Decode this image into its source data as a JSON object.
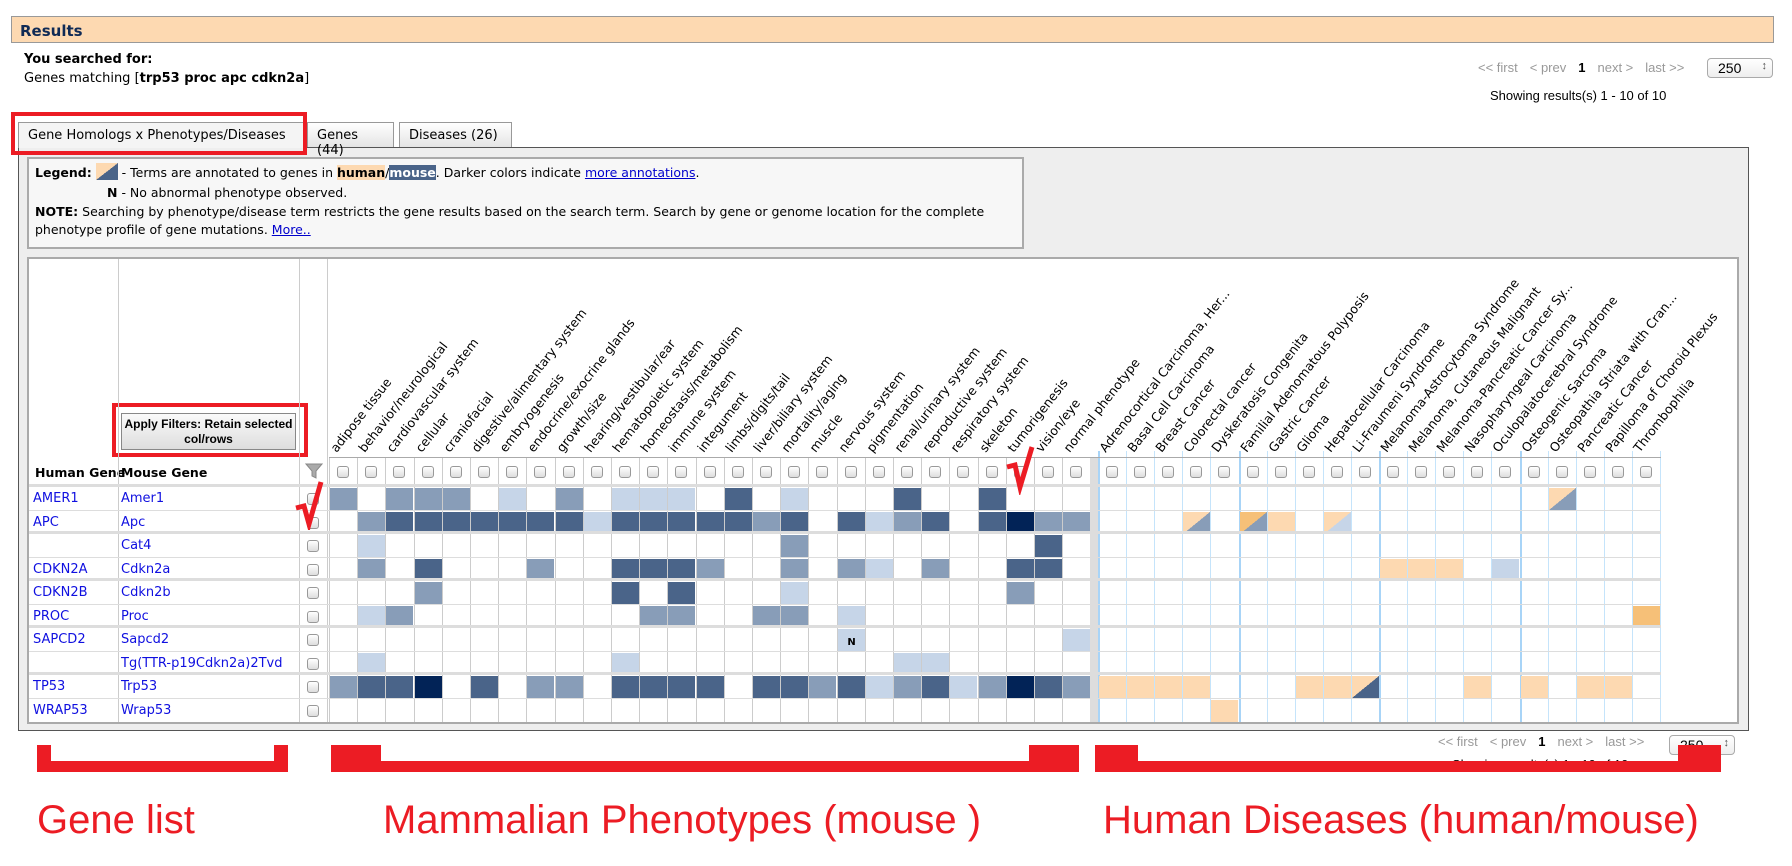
{
  "header": {
    "title": "Results",
    "searched_label": "You searched for:",
    "query_prefix": "Genes matching [",
    "query": "trp53 proc apc cdkn2a",
    "query_suffix": "]"
  },
  "pagination": {
    "first": "<< first",
    "prev": "< prev",
    "page": "1",
    "next": "next >",
    "last": "last >>",
    "page_size": "250",
    "showing": "Showing results(s) 1 - 10 of 10"
  },
  "tabs": [
    {
      "label": "Gene Homologs x Phenotypes/Diseases",
      "active": true
    },
    {
      "label": "Genes (44)"
    },
    {
      "label": "Diseases (26)"
    }
  ],
  "legend": {
    "label": "Legend:",
    "text1": " - Terms are annotated to genes in ",
    "human": "human",
    "slash": "/",
    "mouse": "mouse",
    "text2": ". Darker colors indicate ",
    "link": "more annotations",
    "text3": ".",
    "n_label": "N",
    "n_text": " - No abnormal phenotype observed.",
    "note_label": "NOTE:",
    "note_text": " Searching by phenotype/disease term restricts the gene results based on the search term. Search by gene or genome location for the complete phenotype profile of gene mutations. ",
    "note_link": "More.."
  },
  "grid": {
    "apply_button": "Apply Filters: Retain selected col/rows",
    "human_gene_header": "Human Gene",
    "mouse_gene_header": "Mouse Gene",
    "colors": {
      "mouse": [
        "#ffffff",
        "#c6d5e8",
        "#889db8",
        "#4a6489",
        "#022357"
      ],
      "human": [
        "#ffffff",
        "#fdd9b1",
        "#f6c078"
      ]
    },
    "phenotypes": [
      "adipose tissue",
      "behavior/neurological",
      "cardiovascular system",
      "cellular",
      "craniofacial",
      "digestive/alimentary system",
      "embryogenesis",
      "endocrine/exocrine glands",
      "growth/size",
      "hearing/vestibular/ear",
      "hematopoietic system",
      "homeostasis/metabolism",
      "immune system",
      "integument",
      "limbs/digits/tail",
      "liver/biliary system",
      "mortality/aging",
      "muscle",
      "nervous system",
      "pigmentation",
      "renal/urinary system",
      "reproductive system",
      "respiratory system",
      "skeleton",
      "tumorigenesis",
      "vision/eye",
      "normal phenotype"
    ],
    "diseases": [
      "Adrenocortical Carcinoma, Her...",
      "Basal Cell Carcinoma",
      "Breast Cancer",
      "Colorectal cancer",
      "Dyskeratosis Congenita",
      "Familial Adenomatous Polyposis",
      "Gastric Cancer",
      "Glioma",
      "Hepatocellular Carcinoma",
      "Li-Fraumeni Syndrome",
      "Melanoma-Astrocytoma Syndrome",
      "Melanoma, Cutaneous Malignant",
      "Melanoma-Pancreatic Cancer Sy...",
      "Nasopharyngeal Carcinoma",
      "Oculopalatocerebral Syndrome",
      "Osteogenic Sarcoma",
      "Osteopathia Striata with Cran...",
      "Pancreatic Cancer",
      "Papilloma of Choroid Plexus",
      "Thrombophilia"
    ],
    "rows": [
      {
        "human": "AMER1",
        "mouse": "Amer1",
        "pheno": [
          2,
          0,
          2,
          2,
          2,
          0,
          1,
          0,
          2,
          0,
          1,
          1,
          1,
          0,
          3,
          0,
          1,
          0,
          0,
          0,
          3,
          0,
          0,
          3,
          0,
          0,
          0
        ],
        "disease": [
          "",
          "",
          "",
          "",
          "",
          "",
          "",
          "",
          "",
          "",
          "",
          "",
          "",
          "",
          "",
          "",
          "h1/m2",
          "",
          "",
          ""
        ]
      },
      {
        "human": "APC",
        "mouse": "Apc",
        "pheno": [
          0,
          2,
          3,
          3,
          3,
          3,
          3,
          3,
          3,
          1,
          3,
          3,
          3,
          3,
          3,
          2,
          3,
          0,
          3,
          1,
          2,
          3,
          0,
          3,
          4,
          2,
          2
        ],
        "disease": [
          "",
          "",
          "",
          "h1/m2",
          "",
          "h2/m2",
          "h1",
          "",
          "h1/m1",
          "",
          "",
          "",
          "",
          "",
          "",
          "",
          "",
          "",
          "",
          ""
        ]
      },
      {
        "human": "",
        "mouse": "Cat4",
        "pheno": [
          0,
          1,
          0,
          0,
          0,
          0,
          0,
          0,
          0,
          0,
          0,
          0,
          0,
          0,
          0,
          0,
          2,
          0,
          0,
          0,
          0,
          0,
          0,
          0,
          0,
          3,
          0
        ],
        "disease": [
          "",
          "",
          "",
          "",
          "",
          "",
          "",
          "",
          "",
          "",
          "",
          "",
          "",
          "",
          "",
          "",
          "",
          "",
          "",
          ""
        ]
      },
      {
        "human": "CDKN2A",
        "mouse": "Cdkn2a",
        "pheno": [
          0,
          2,
          0,
          3,
          0,
          0,
          0,
          2,
          0,
          0,
          3,
          3,
          3,
          2,
          0,
          0,
          2,
          0,
          2,
          1,
          0,
          2,
          0,
          0,
          3,
          3,
          0
        ],
        "disease": [
          "",
          "",
          "",
          "",
          "",
          "",
          "",
          "",
          "",
          "",
          "h1",
          "h1",
          "h1",
          "",
          "m1",
          "",
          "",
          "",
          "",
          ""
        ]
      },
      {
        "human": "CDKN2B",
        "mouse": "Cdkn2b",
        "pheno": [
          0,
          0,
          0,
          2,
          0,
          0,
          0,
          0,
          0,
          0,
          3,
          0,
          3,
          0,
          0,
          0,
          1,
          0,
          0,
          0,
          0,
          0,
          0,
          0,
          2,
          0,
          0
        ],
        "disease": [
          "",
          "",
          "",
          "",
          "",
          "",
          "",
          "",
          "",
          "",
          "",
          "",
          "",
          "",
          "",
          "",
          "",
          "",
          "",
          ""
        ]
      },
      {
        "human": "PROC",
        "mouse": "Proc",
        "pheno": [
          0,
          1,
          2,
          0,
          0,
          0,
          0,
          0,
          0,
          0,
          0,
          2,
          2,
          0,
          0,
          2,
          2,
          0,
          1,
          0,
          0,
          0,
          0,
          0,
          0,
          0,
          0
        ],
        "disease": [
          "",
          "",
          "",
          "",
          "",
          "",
          "",
          "",
          "",
          "",
          "",
          "",
          "",
          "",
          "",
          "",
          "",
          "",
          "",
          "h2"
        ]
      },
      {
        "human": "SAPCD2",
        "mouse": "Sapcd2",
        "pheno": [
          0,
          0,
          0,
          0,
          0,
          0,
          0,
          0,
          0,
          0,
          0,
          0,
          0,
          0,
          0,
          0,
          0,
          0,
          "N",
          0,
          0,
          0,
          0,
          0,
          0,
          0,
          1
        ],
        "disease": [
          "",
          "",
          "",
          "",
          "",
          "",
          "",
          "",
          "",
          "",
          "",
          "",
          "",
          "",
          "",
          "",
          "",
          "",
          "",
          ""
        ]
      },
      {
        "human": "",
        "mouse": "Tg(TTR-p19Cdkn2a)2Tvd",
        "pheno": [
          0,
          1,
          0,
          0,
          0,
          0,
          0,
          0,
          0,
          0,
          1,
          0,
          0,
          0,
          0,
          0,
          0,
          0,
          0,
          0,
          1,
          1,
          0,
          0,
          0,
          0,
          0
        ],
        "disease": [
          "",
          "",
          "",
          "",
          "",
          "",
          "",
          "",
          "",
          "",
          "",
          "",
          "",
          "",
          "",
          "",
          "",
          "",
          "",
          ""
        ]
      },
      {
        "human": "TP53",
        "mouse": "Trp53",
        "pheno": [
          2,
          3,
          3,
          4,
          0,
          3,
          0,
          2,
          2,
          0,
          3,
          3,
          3,
          3,
          0,
          3,
          3,
          2,
          3,
          1,
          2,
          3,
          1,
          2,
          4,
          3,
          2
        ],
        "disease": [
          "h1",
          "h1",
          "h1",
          "h1",
          "",
          "",
          "",
          "h1",
          "h1",
          "h1/m3",
          "",
          "",
          "",
          "h1",
          "",
          "h1",
          "",
          "h1",
          "h1",
          ""
        ]
      },
      {
        "human": "WRAP53",
        "mouse": "Wrap53",
        "pheno": [
          0,
          0,
          0,
          0,
          0,
          0,
          0,
          0,
          0,
          0,
          0,
          0,
          0,
          0,
          0,
          0,
          0,
          0,
          0,
          0,
          0,
          0,
          0,
          0,
          0,
          0,
          0
        ],
        "disease": [
          "",
          "",
          "",
          "",
          "h1",
          "",
          "",
          "",
          "",
          "",
          "",
          "",
          "",
          "",
          "",
          "",
          "",
          "",
          "",
          ""
        ]
      }
    ]
  },
  "annotations": {
    "gene_list": "Gene list",
    "phenotypes": "Mammalian Phenotypes (mouse )",
    "diseases": "Human Diseases (human/mouse)",
    "color": "#ec1c24"
  }
}
